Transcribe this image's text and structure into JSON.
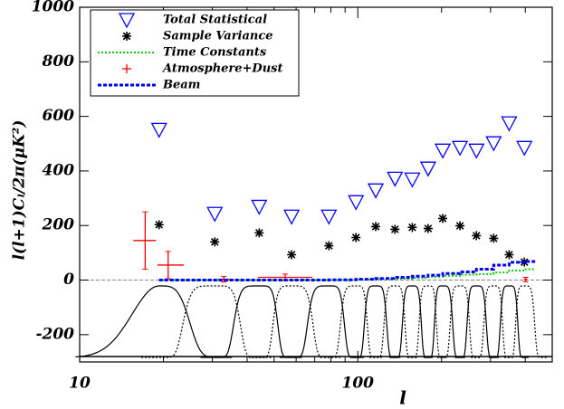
{
  "chart_data": {
    "type": "scatter",
    "x_label": "l",
    "y_label": "l(l+1)Cₗ/2π(μK²)",
    "xscale": "log",
    "xlim": [
      10,
      500
    ],
    "xticks": [
      10,
      100
    ],
    "ylim": [
      -300,
      1000
    ],
    "yticks": [
      -200,
      0,
      200,
      400,
      600,
      800,
      1000
    ],
    "legend": "upper left",
    "x": [
      19.3,
      30.6,
      44.2,
      57.8,
      78.7,
      98.5,
      116,
      136,
      157,
      179,
      202,
      233,
      267,
      308,
      350,
      397
    ],
    "series": [
      {
        "name": "Total Statistical",
        "color": "#0000ff",
        "marker": "triangle-down",
        "values": [
          551,
          243,
          269,
          233,
          233,
          286,
          329,
          372,
          369,
          409,
          475,
          485,
          475,
          502,
          575,
          485
        ]
      },
      {
        "name": "Sample Variance",
        "color": "#000000",
        "marker": "asterisk",
        "values": [
          203,
          140,
          173,
          93,
          126,
          156,
          196,
          186,
          193,
          189,
          226,
          199,
          163,
          153,
          93,
          66
        ]
      },
      {
        "name": "Time Constants",
        "color": "#00cc00",
        "marker": "dotted-step",
        "values": [
          0,
          0,
          0,
          0,
          0,
          2,
          4,
          6,
          8,
          12,
          16,
          20,
          22,
          28,
          35,
          40
        ]
      },
      {
        "name": "Atmosphere+Dust",
        "color": "#ff0000",
        "marker": "errorbar",
        "x": [
          17.2,
          20.8,
          33,
          54.8,
          401
        ],
        "x_low": [
          15.6,
          19.0,
          31.5,
          43.8,
          395
        ],
        "x_high": [
          18.8,
          23.7,
          34.5,
          68.6,
          407
        ],
        "values": [
          145,
          55,
          3,
          10,
          2
        ],
        "errors": [
          105,
          50,
          10,
          12,
          8
        ]
      },
      {
        "name": "Beam",
        "color": "#0000ff",
        "marker": "dashed-step",
        "values": [
          0,
          0,
          0,
          0,
          1,
          3,
          6,
          10,
          14,
          18,
          24,
          30,
          40,
          55,
          65,
          68
        ]
      }
    ]
  }
}
